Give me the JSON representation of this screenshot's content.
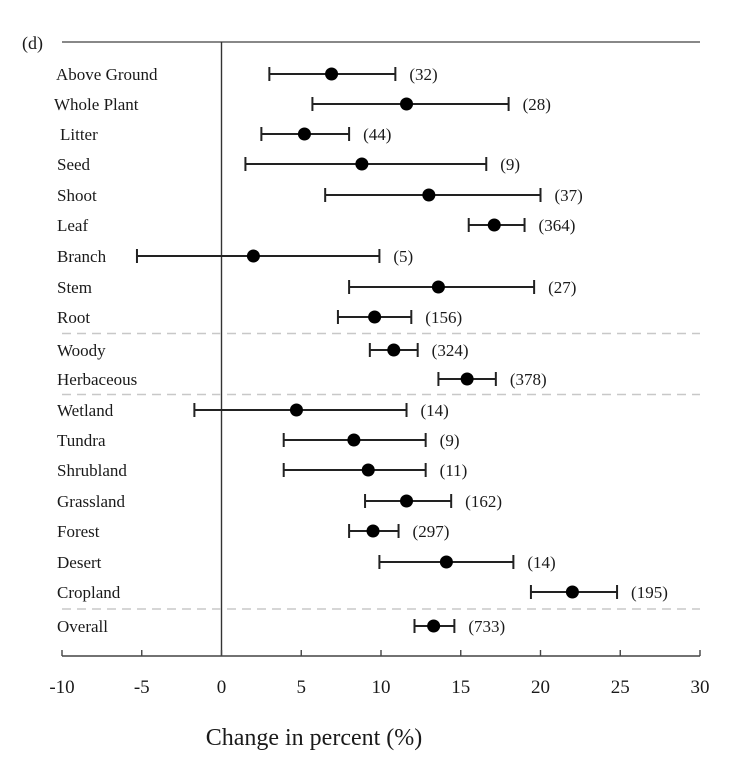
{
  "chart_data": {
    "type": "forest",
    "panel_label": "(d)",
    "xlabel": "Change in percent (%)",
    "xlim": [
      -10,
      30
    ],
    "xticks": [
      "-10",
      "-5",
      "0",
      "5",
      "10",
      "15",
      "20",
      "25",
      "30"
    ],
    "reference_line": 0,
    "rows": [
      {
        "label": "Above Ground",
        "mean": 6.9,
        "lower": 3.0,
        "upper": 10.9,
        "n": "(32)",
        "group": 1
      },
      {
        "label": "Whole Plant",
        "mean": 11.6,
        "lower": 5.7,
        "upper": 18.0,
        "n": "(28)",
        "group": 1
      },
      {
        "label": "Litter",
        "mean": 5.2,
        "lower": 2.5,
        "upper": 8.0,
        "n": "(44)",
        "group": 1
      },
      {
        "label": "Seed",
        "mean": 8.8,
        "lower": 1.5,
        "upper": 16.6,
        "n": "(9)",
        "group": 1
      },
      {
        "label": "Shoot",
        "mean": 13.0,
        "lower": 6.5,
        "upper": 20.0,
        "n": "(37)",
        "group": 1
      },
      {
        "label": "Leaf",
        "mean": 17.1,
        "lower": 15.5,
        "upper": 19.0,
        "n": "(364)",
        "group": 1
      },
      {
        "label": "Branch",
        "mean": 2.0,
        "lower": -5.3,
        "upper": 9.9,
        "n": "(5)",
        "group": 1
      },
      {
        "label": "Stem",
        "mean": 13.6,
        "lower": 8.0,
        "upper": 19.6,
        "n": "(27)",
        "group": 1
      },
      {
        "label": "Root",
        "mean": 9.6,
        "lower": 7.3,
        "upper": 11.9,
        "n": "(156)",
        "group": 1
      },
      {
        "label": "Woody",
        "mean": 10.8,
        "lower": 9.3,
        "upper": 12.3,
        "n": "(324)",
        "group": 2
      },
      {
        "label": "Herbaceous",
        "mean": 15.4,
        "lower": 13.6,
        "upper": 17.2,
        "n": "(378)",
        "group": 2
      },
      {
        "label": "Wetland",
        "mean": 4.7,
        "lower": -1.7,
        "upper": 11.6,
        "n": "(14)",
        "group": 3
      },
      {
        "label": "Tundra",
        "mean": 8.3,
        "lower": 3.9,
        "upper": 12.8,
        "n": "(9)",
        "group": 3
      },
      {
        "label": "Shrubland",
        "mean": 9.2,
        "lower": 3.9,
        "upper": 12.8,
        "n": "(11)",
        "group": 3
      },
      {
        "label": "Grassland",
        "mean": 11.6,
        "lower": 9.0,
        "upper": 14.4,
        "n": "(162)",
        "group": 3
      },
      {
        "label": "Forest",
        "mean": 9.5,
        "lower": 8.0,
        "upper": 11.1,
        "n": "(297)",
        "group": 3
      },
      {
        "label": "Desert",
        "mean": 14.1,
        "lower": 9.9,
        "upper": 18.3,
        "n": "(14)",
        "group": 3
      },
      {
        "label": "Cropland",
        "mean": 22.0,
        "lower": 19.4,
        "upper": 24.8,
        "n": "(195)",
        "group": 3
      },
      {
        "label": "Overall",
        "mean": 13.3,
        "lower": 12.1,
        "upper": 14.6,
        "n": "(733)",
        "group": 4
      }
    ]
  }
}
